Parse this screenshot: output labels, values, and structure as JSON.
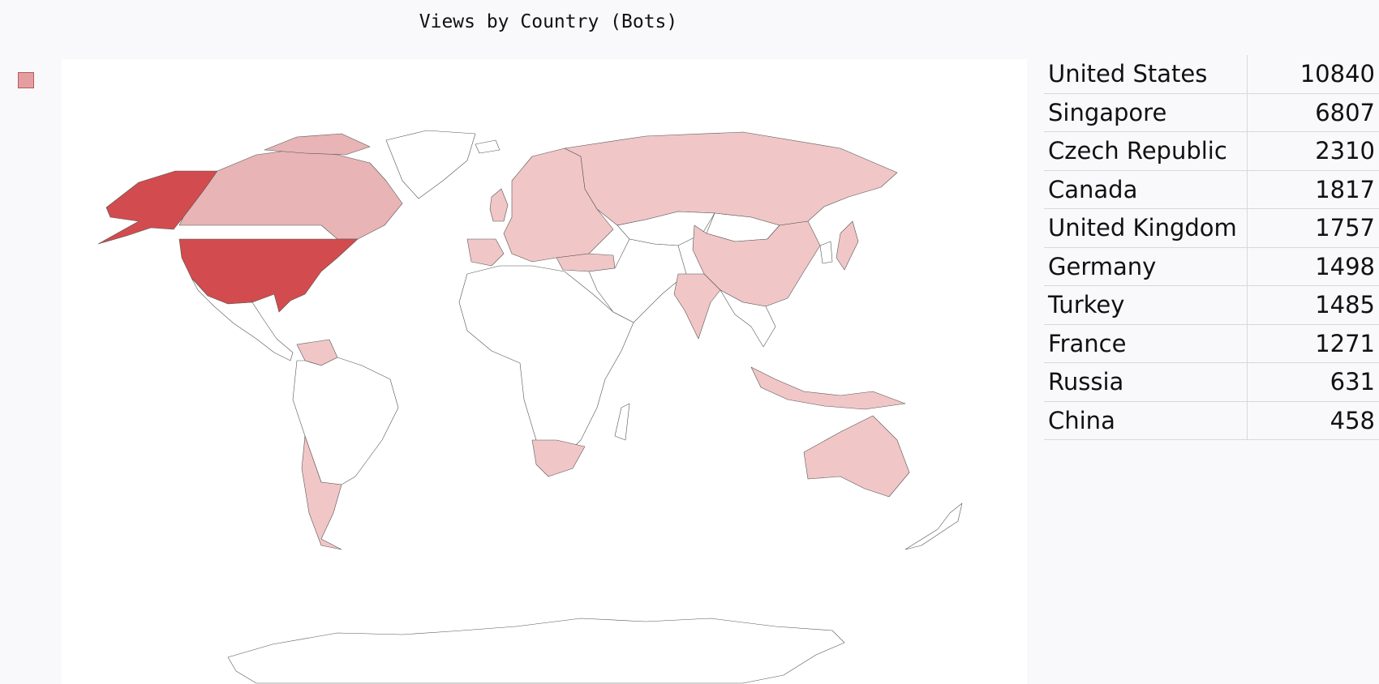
{
  "title": "Views by Country (Bots)",
  "legend": {
    "swatch_color": "#e59ea0"
  },
  "colors": {
    "high": "#d24b4e",
    "mid": "#e8b4b5",
    "low": "#f1c6c7",
    "none": "#ffffff",
    "border": "#555555"
  },
  "table": {
    "rows": [
      {
        "country": "United States",
        "views": "10840"
      },
      {
        "country": "Singapore",
        "views": "6807"
      },
      {
        "country": "Czech Republic",
        "views": "2310"
      },
      {
        "country": "Canada",
        "views": "1817"
      },
      {
        "country": "United Kingdom",
        "views": "1757"
      },
      {
        "country": "Germany",
        "views": "1498"
      },
      {
        "country": "Turkey",
        "views": "1485"
      },
      {
        "country": "France",
        "views": "1271"
      },
      {
        "country": "Russia",
        "views": "631"
      },
      {
        "country": "China",
        "views": "458"
      }
    ]
  }
}
